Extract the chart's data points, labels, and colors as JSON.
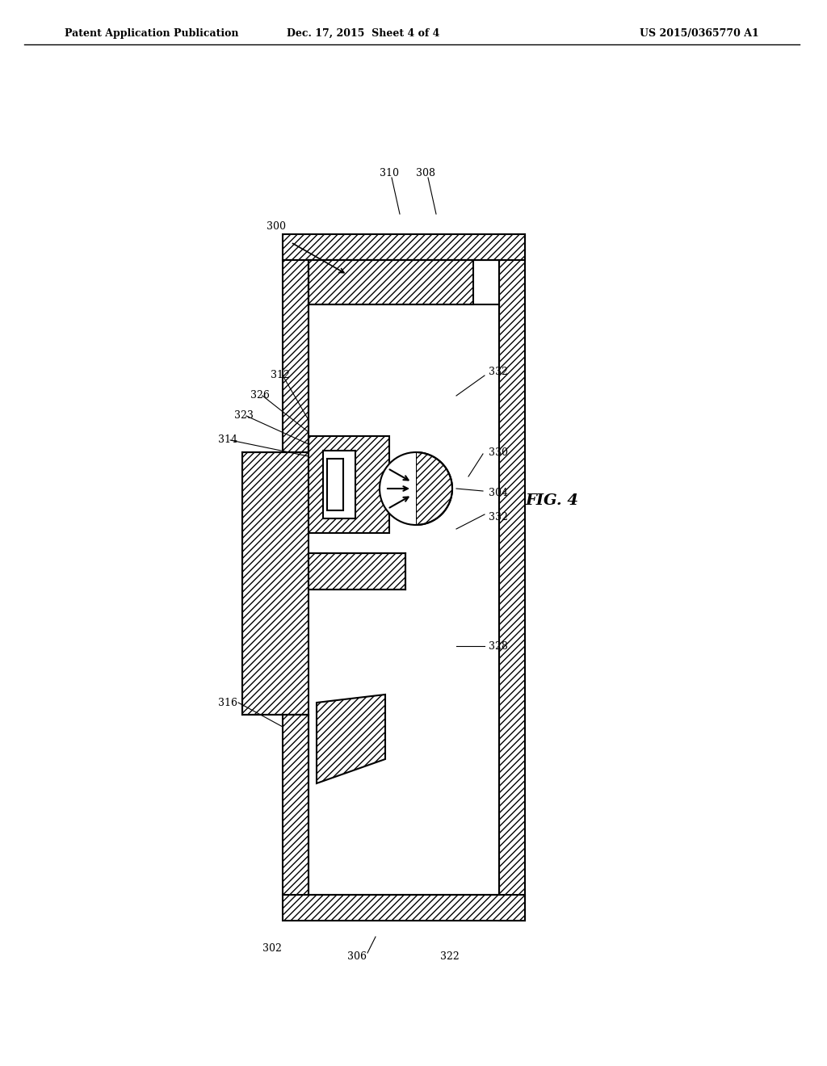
{
  "bg_color": "#ffffff",
  "line_color": "#000000",
  "hatch_color": "#000000",
  "hatch_pattern": "////",
  "fig_width": 10.24,
  "fig_height": 13.2,
  "header_left": "Patent Application Publication",
  "header_center": "Dec. 17, 2015  Sheet 4 of 4",
  "header_right": "US 2015/0365770 A1",
  "fig_label": "FIG. 4",
  "ref_300": "300",
  "ref_302": "302",
  "ref_304": "304",
  "ref_306": "306",
  "ref_308": "308",
  "ref_310": "310",
  "ref_312": "312",
  "ref_314": "314",
  "ref_316": "316",
  "ref_322": "322",
  "ref_323": "323",
  "ref_326": "326",
  "ref_328": "328",
  "ref_330": "330",
  "ref_332_top": "332",
  "ref_332_bot": "332"
}
